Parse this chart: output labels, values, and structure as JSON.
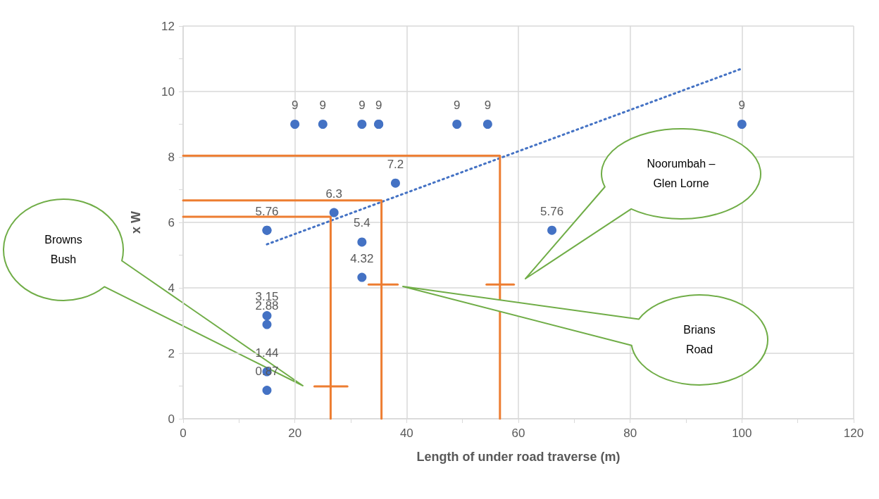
{
  "chart_data": {
    "type": "scatter",
    "xlabel": "Length of under road traverse (m)",
    "ylabel": "x W",
    "xlim": [
      0,
      120
    ],
    "xticks": [
      0,
      20,
      40,
      60,
      80,
      100,
      120
    ],
    "ylim": [
      0,
      12
    ],
    "yticks": [
      0,
      2,
      4,
      6,
      8,
      10,
      12
    ],
    "grid": true,
    "marker": "circle",
    "series": [
      {
        "color": "#4472c4",
        "x": [
          15,
          15,
          15,
          15,
          15,
          15,
          20,
          25,
          32,
          35,
          35,
          49,
          54.5,
          100,
          27,
          32,
          32,
          38,
          66
        ],
        "values": [
          5.76,
          5.76,
          3.15,
          2.88,
          1.44,
          0.87,
          9,
          9,
          9,
          9,
          9,
          9,
          9,
          9,
          6.3,
          5.4,
          4.32,
          7.2,
          5.76
        ],
        "value_labels": [
          "5.76",
          null,
          "3.15",
          "2.88",
          "1.44",
          "0.87",
          "9",
          "9",
          "9",
          "9",
          null,
          "9",
          "9",
          "9",
          "6.3",
          "5.4",
          "4.32",
          "7.2",
          "5.76"
        ]
      },
      {
        "type": "line",
        "color": "#4472c4",
        "line_style": "dotted",
        "marker": "none",
        "x": [
          15,
          100
        ],
        "values": [
          5.33,
          10.7
        ]
      },
      {
        "type": "line",
        "color": "#ed7d31",
        "line_style": "solid",
        "marker": "none",
        "x": [
          0,
          56.7,
          56.7
        ],
        "values": [
          8.04,
          8.04,
          0
        ]
      },
      {
        "type": "line",
        "color": "#ed7d31",
        "line_style": "solid",
        "marker": "none",
        "x": [
          0,
          35.5,
          35.5
        ],
        "values": [
          6.67,
          6.67,
          0
        ]
      },
      {
        "type": "line",
        "color": "#ed7d31",
        "line_style": "solid",
        "marker": "none",
        "x": [
          0,
          26.4,
          26.4
        ],
        "values": [
          6.17,
          6.17,
          0
        ]
      },
      {
        "type": "line",
        "color": "#ed7d31",
        "line_style": "solid",
        "marker": "none",
        "x": [
          54.3,
          59.2
        ],
        "values": [
          4.1,
          4.1
        ]
      },
      {
        "type": "line",
        "color": "#ed7d31",
        "line_style": "solid",
        "marker": "none",
        "x": [
          33.2,
          38.4
        ],
        "values": [
          4.1,
          4.1
        ]
      },
      {
        "type": "line",
        "color": "#ed7d31",
        "line_style": "solid",
        "marker": "none",
        "x": [
          23.5,
          29.4
        ],
        "values": [
          0.99,
          0.99
        ]
      }
    ],
    "annotations": [
      "Browns Bush",
      "Noorumbah – Glen Lorne",
      "Brians Road"
    ]
  }
}
